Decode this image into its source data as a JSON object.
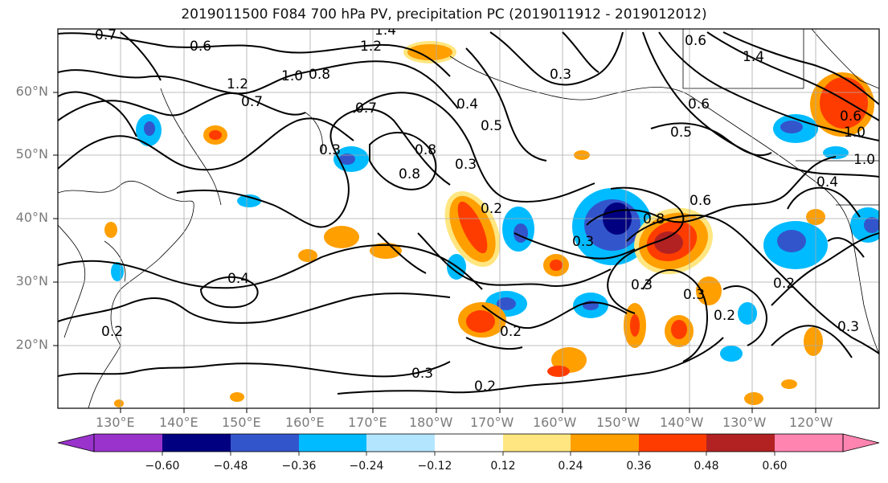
{
  "title": "2019011500 F084 700 hPa PV, precipitation PC (2019011912 - 2019012012)",
  "map": {
    "lat_labels": [
      "60°N",
      "50°N",
      "40°N",
      "30°N",
      "20°N"
    ],
    "lon_labels": [
      "130°E",
      "140°E",
      "150°E",
      "160°E",
      "170°E",
      "180°W",
      "170°W",
      "160°W",
      "150°W",
      "140°W",
      "130°W",
      "120°W"
    ],
    "contour_labels": [
      "0.7",
      "0.6",
      "1.4",
      "1.2",
      "1.2",
      "1.0",
      "0.8",
      "0.7",
      "0.8",
      "0.4",
      "0.3",
      "0.5",
      "0.8",
      "0.7",
      "0.3",
      "0.2",
      "0.3",
      "0.6",
      "0.8",
      "0.6",
      "0.3",
      "0.3",
      "0.4",
      "0.2",
      "0.2",
      "0.3",
      "0.2",
      "0.2",
      "0.3",
      "0.5",
      "0.6",
      "1.4",
      "1.0",
      "1.0",
      "0.6",
      "0.4",
      "0.3",
      "0.2"
    ]
  },
  "colorbar": {
    "tick_labels": [
      "−0.60",
      "−0.48",
      "−0.36",
      "−0.24",
      "−0.12",
      "0.12",
      "0.24",
      "0.36",
      "0.48",
      "0.60"
    ],
    "colors": [
      "#9933cc",
      "#000080",
      "#3355cc",
      "#00bbff",
      "#b3e5ff",
      "#ffffff",
      "#ffe680",
      "#ff9f00",
      "#ff3c00",
      "#b22222",
      "#ff85b0"
    ]
  }
}
